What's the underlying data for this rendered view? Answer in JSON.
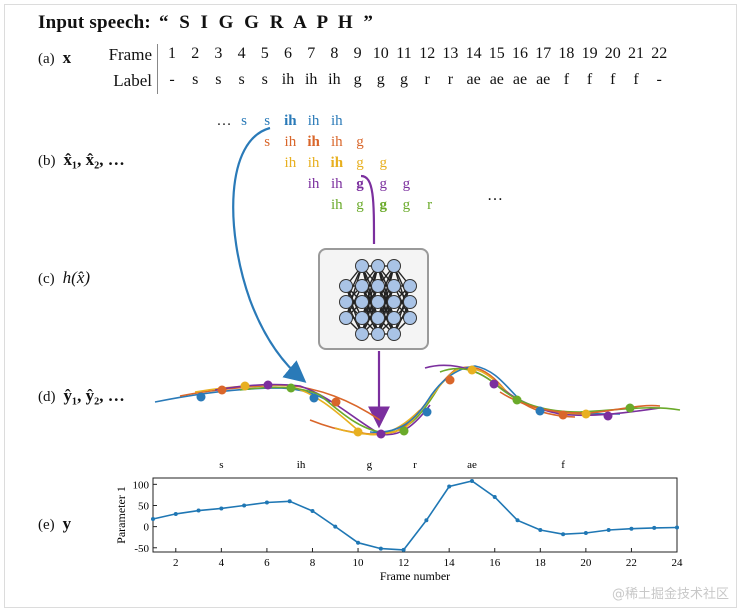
{
  "title": {
    "prefix": "Input speech:",
    "word": "“ S I G G R A P H ”"
  },
  "rows": {
    "a": {
      "tag": "(a)",
      "sym": "x"
    },
    "b": {
      "tag": "(b)",
      "sym": "x̂₁, x̂₂, …"
    },
    "c": {
      "tag": "(c)",
      "sym": "h(x̂)"
    },
    "d": {
      "tag": "(d)",
      "sym": "ŷ₁, ŷ₂, …"
    },
    "e": {
      "tag": "(e)",
      "sym": "y"
    }
  },
  "table": {
    "frame_header": "Frame",
    "label_header": "Label",
    "frames": [
      "1",
      "2",
      "3",
      "4",
      "5",
      "6",
      "7",
      "8",
      "9",
      "10",
      "11",
      "12",
      "13",
      "14",
      "15",
      "16",
      "17",
      "18",
      "19",
      "20",
      "21",
      "22"
    ],
    "labels": [
      "-",
      "s",
      "s",
      "s",
      "s",
      "ih",
      "ih",
      "ih",
      "g",
      "g",
      "g",
      "r",
      "r",
      "ae",
      "ae",
      "ae",
      "ae",
      "f",
      "f",
      "f",
      "f",
      "-"
    ]
  },
  "windows": [
    {
      "color": "#2a7ab8",
      "ellipsis": "…",
      "tokens": [
        "s",
        "s",
        "ih",
        "ih",
        "ih"
      ],
      "bold": 2
    },
    {
      "color": "#d9662a",
      "tokens": [
        "s",
        "ih",
        "ih",
        "ih",
        "g"
      ],
      "bold": 2
    },
    {
      "color": "#e8b020",
      "tokens": [
        "ih",
        "ih",
        "ih",
        "g",
        "g"
      ],
      "bold": 2
    },
    {
      "color": "#7b2f9e",
      "tokens": [
        "ih",
        "ih",
        "g",
        "g",
        "g"
      ],
      "bold": 2
    },
    {
      "color": "#6aaa2a",
      "tokens": [
        "ih",
        "g",
        "g",
        "g",
        "r"
      ],
      "bold": 2
    }
  ],
  "more": "…",
  "colors": {
    "blue": "#2a7ab8",
    "orange": "#d9662a",
    "yellow": "#e8b020",
    "purple": "#7b2f9e",
    "green": "#6aaa2a",
    "plot": "#1f77b4"
  },
  "chart_data": {
    "type": "line",
    "title": "",
    "xlabel": "Frame number",
    "ylabel": "Parameter 1",
    "xlim": [
      1,
      24
    ],
    "ylim": [
      -60,
      115
    ],
    "xticks": [
      2,
      4,
      6,
      8,
      10,
      12,
      14,
      16,
      18,
      20,
      22,
      24
    ],
    "yticks": [
      -50,
      0,
      50,
      100
    ],
    "phoneme_labels": [
      {
        "x": 4,
        "text": "s"
      },
      {
        "x": 7.5,
        "text": "ih"
      },
      {
        "x": 10.5,
        "text": "g"
      },
      {
        "x": 12.5,
        "text": "r"
      },
      {
        "x": 15,
        "text": "ae"
      },
      {
        "x": 19,
        "text": "f"
      }
    ],
    "x": [
      1,
      2,
      3,
      4,
      5,
      6,
      7,
      8,
      9,
      10,
      11,
      12,
      13,
      14,
      15,
      16,
      17,
      18,
      19,
      20,
      21,
      22,
      23,
      24
    ],
    "values": [
      18,
      30,
      38,
      43,
      50,
      57,
      60,
      37,
      0,
      -38,
      -52,
      -55,
      15,
      95,
      108,
      70,
      15,
      -8,
      -18,
      -15,
      -8,
      -5,
      -3,
      -2
    ]
  },
  "watermark": "@稀土掘金技术社区"
}
